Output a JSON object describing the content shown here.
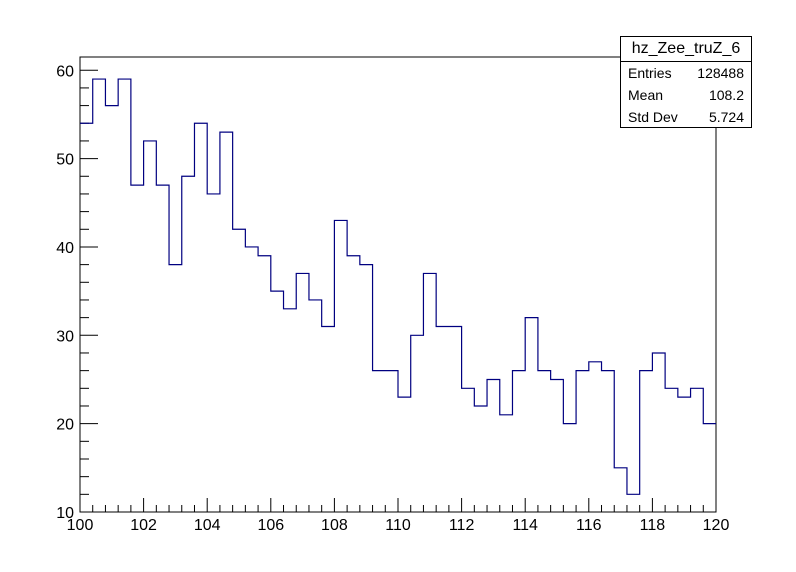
{
  "chart_data": {
    "type": "histogram",
    "title": "hz_Zee_truZ_6",
    "xlabel": "",
    "ylabel": "",
    "xlim": [
      100,
      120
    ],
    "ylim": [
      10,
      61.5
    ],
    "line_color": "#000080",
    "bin_width": 0.4,
    "bin_low_edges": [
      100.0,
      100.4,
      100.8,
      101.2,
      101.6,
      102.0,
      102.4,
      102.8,
      103.2,
      103.6,
      104.0,
      104.4,
      104.8,
      105.2,
      105.6,
      106.0,
      106.4,
      106.8,
      107.2,
      107.6,
      108.0,
      108.4,
      108.8,
      109.2,
      109.6,
      110.0,
      110.4,
      110.8,
      111.2,
      111.6,
      112.0,
      112.4,
      112.8,
      113.2,
      113.6,
      114.0,
      114.4,
      114.8,
      115.2,
      115.6,
      116.0,
      116.4,
      116.8,
      117.2,
      117.6,
      118.0,
      118.4,
      118.8,
      119.2,
      119.6
    ],
    "values": [
      54,
      59,
      56,
      59,
      47,
      52,
      47,
      38,
      48,
      54,
      46,
      53,
      42,
      40,
      39,
      35,
      33,
      37,
      34,
      31,
      43,
      39,
      38,
      26,
      26,
      23,
      30,
      37,
      31,
      31,
      24,
      22,
      25,
      21,
      26,
      32,
      26,
      25,
      20,
      26,
      27,
      26,
      15,
      12,
      26,
      28,
      24,
      23,
      24,
      20
    ],
    "x_ticks": [
      "100",
      "102",
      "104",
      "106",
      "108",
      "110",
      "112",
      "114",
      "116",
      "118",
      "120"
    ],
    "y_ticks": [
      "10",
      "20",
      "30",
      "40",
      "50",
      "60"
    ],
    "grid": false,
    "legend": "none",
    "stats": {
      "title": "hz_Zee_truZ_6",
      "entries_label": "Entries",
      "entries_value": "128488",
      "mean_label": "Mean",
      "mean_value": "108.2",
      "stddev_label": "Std Dev",
      "stddev_value": "5.724"
    }
  }
}
